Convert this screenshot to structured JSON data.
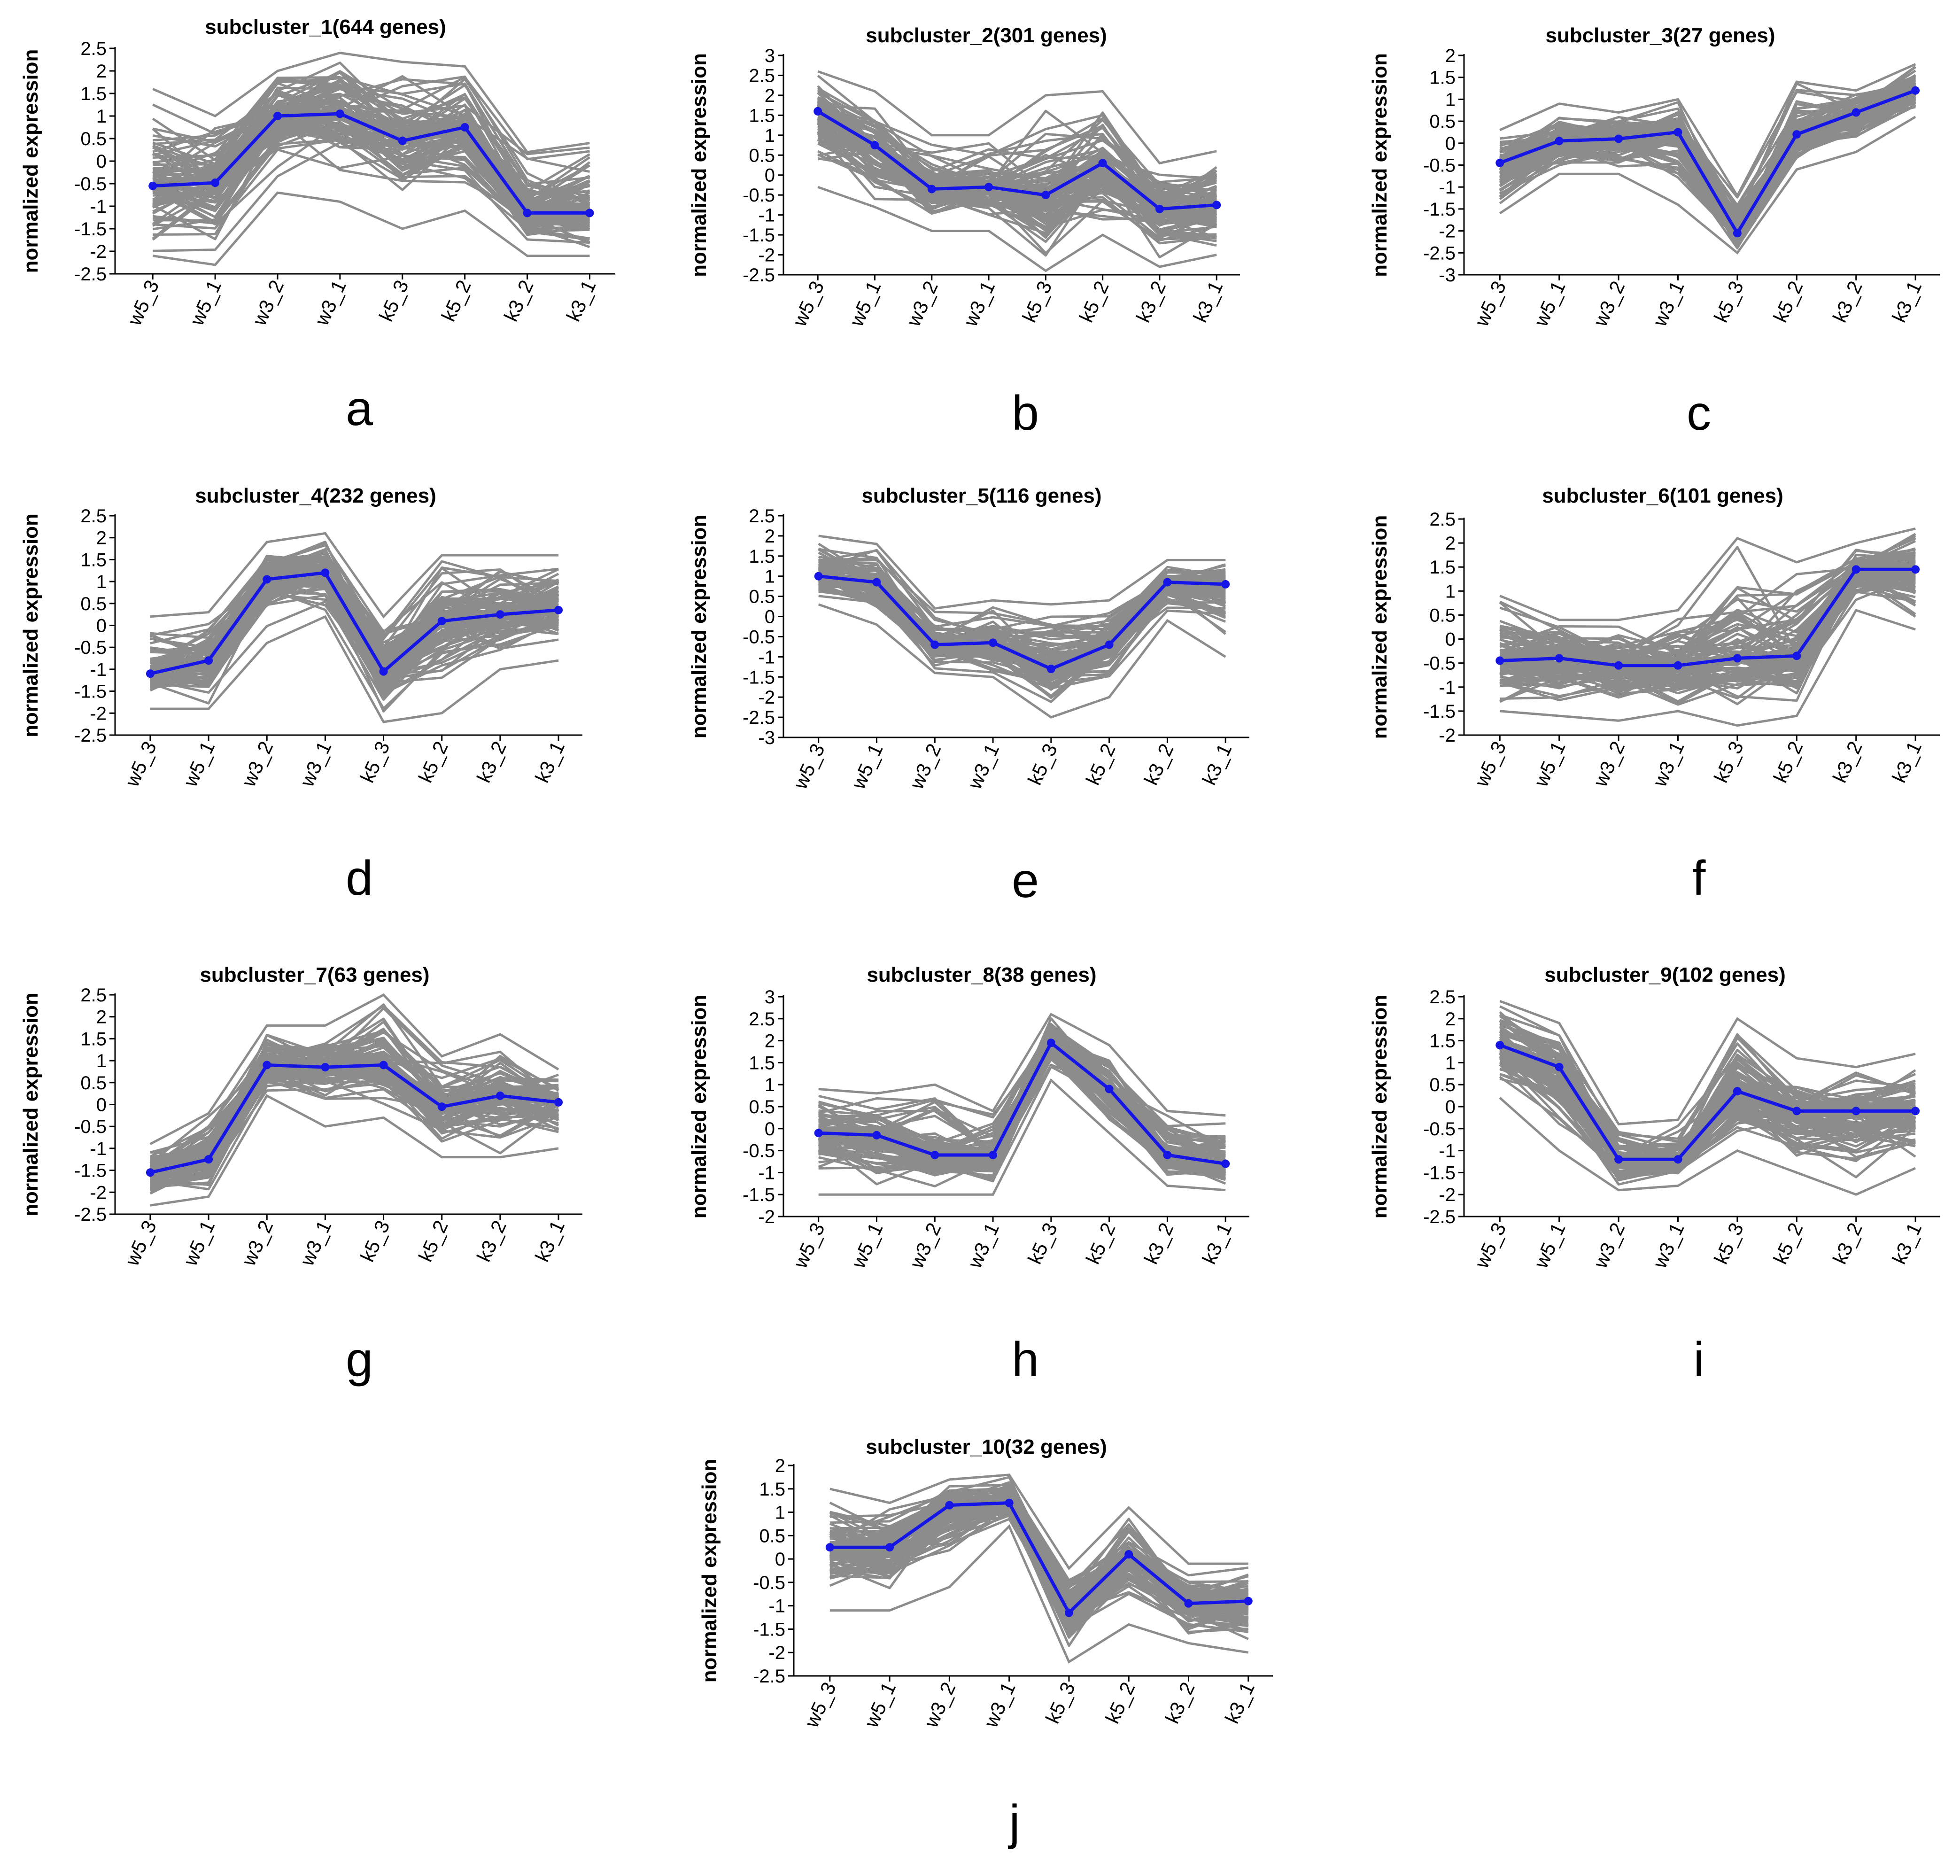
{
  "colors": {
    "gene_lines": "#8c8c8c",
    "mean_line": "#1515e6",
    "axis": "#000000"
  },
  "chart_data": [
    {
      "type": "line",
      "panel": "a",
      "title": "subcluster_1(644 genes)",
      "ylabel": "normalized expression",
      "xlabel": "",
      "categories": [
        "w5_3",
        "w5_1",
        "w3_2",
        "w3_1",
        "k5_3",
        "k5_2",
        "k3_2",
        "k3_1"
      ],
      "yticks": [
        "2.5",
        "2",
        "1.5",
        "1",
        "0.5",
        "0",
        "-0.5",
        "-1",
        "-1.5",
        "-2",
        "-2.5"
      ],
      "ylim": [
        -2.5,
        2.5
      ],
      "gene_band": {
        "low": [
          -2.1,
          -2.3,
          -0.7,
          -0.9,
          -1.5,
          -1.1,
          -2.1,
          -2.1
        ],
        "high": [
          1.6,
          1.0,
          2.0,
          2.4,
          2.2,
          2.1,
          0.2,
          0.4
        ]
      },
      "series": [
        {
          "values": [
            -0.55,
            -0.48,
            1.0,
            1.05,
            0.45,
            0.75,
            -1.15,
            -1.15
          ]
        }
      ]
    },
    {
      "type": "line",
      "panel": "b",
      "title": "subcluster_2(301 genes)",
      "ylabel": "normalized expression",
      "xlabel": "",
      "categories": [
        "w5_3",
        "w5_1",
        "w3_2",
        "w3_1",
        "k5_3",
        "k5_2",
        "k3_2",
        "k3_1"
      ],
      "yticks": [
        "3",
        "2.5",
        "2",
        "1.5",
        "1",
        "0.5",
        "0",
        "-0.5",
        "-1",
        "-1.5",
        "-2",
        "-2.5"
      ],
      "ylim": [
        -2.5,
        3
      ],
      "gene_band": {
        "low": [
          -0.3,
          -0.8,
          -1.4,
          -1.4,
          -2.4,
          -1.5,
          -2.3,
          -2.0
        ],
        "high": [
          2.6,
          2.1,
          1.0,
          1.0,
          2.0,
          2.1,
          0.3,
          0.6
        ]
      },
      "series": [
        {
          "values": [
            1.6,
            0.75,
            -0.35,
            -0.3,
            -0.5,
            0.3,
            -0.85,
            -0.75
          ]
        }
      ]
    },
    {
      "type": "line",
      "panel": "c",
      "title": "subcluster_3(27 genes)",
      "ylabel": "normalized expression",
      "xlabel": "",
      "categories": [
        "w5_3",
        "w5_1",
        "w3_2",
        "w3_1",
        "k5_3",
        "k5_2",
        "k3_2",
        "k3_1"
      ],
      "yticks": [
        "2",
        "1.5",
        "1",
        "0.5",
        "0",
        "-0.5",
        "-1",
        "-1.5",
        "-2",
        "-2.5",
        "-3"
      ],
      "ylim": [
        -3,
        2
      ],
      "gene_band": {
        "low": [
          -1.6,
          -0.7,
          -0.7,
          -1.4,
          -2.5,
          -0.6,
          -0.2,
          0.6
        ],
        "high": [
          0.3,
          0.9,
          0.7,
          1.0,
          -1.2,
          1.4,
          1.2,
          1.8
        ]
      },
      "series": [
        {
          "values": [
            -0.45,
            0.05,
            0.1,
            0.25,
            -2.05,
            0.2,
            0.7,
            1.2
          ]
        }
      ]
    },
    {
      "type": "line",
      "panel": "d",
      "title": "subcluster_4(232 genes)",
      "ylabel": "normalized expression",
      "xlabel": "",
      "categories": [
        "w5_3",
        "w5_1",
        "w3_2",
        "w3_1",
        "k5_3",
        "k5_2",
        "k3_2",
        "k3_1"
      ],
      "yticks": [
        "2.5",
        "2",
        "1.5",
        "1",
        "0.5",
        "0",
        "-0.5",
        "-1",
        "-1.5",
        "-2",
        "-2.5"
      ],
      "ylim": [
        -2.5,
        2.5
      ],
      "gene_band": {
        "low": [
          -1.9,
          -1.9,
          -0.4,
          0.2,
          -2.2,
          -2.0,
          -1.0,
          -0.8
        ],
        "high": [
          0.2,
          0.3,
          1.9,
          2.1,
          0.2,
          1.6,
          1.6,
          1.6
        ]
      },
      "series": [
        {
          "values": [
            -1.1,
            -0.8,
            1.05,
            1.2,
            -1.05,
            0.1,
            0.25,
            0.35
          ]
        }
      ]
    },
    {
      "type": "line",
      "panel": "e",
      "title": "subcluster_5(116 genes)",
      "ylabel": "normalized expression",
      "xlabel": "",
      "categories": [
        "w5_3",
        "w5_1",
        "w3_2",
        "w3_1",
        "k5_3",
        "k5_2",
        "k3_2",
        "k3_1"
      ],
      "yticks": [
        "2.5",
        "2",
        "1.5",
        "1",
        "0.5",
        "0",
        "-0.5",
        "-1",
        "-1.5",
        "-2",
        "-2.5",
        "-3"
      ],
      "ylim": [
        -3,
        2.5
      ],
      "gene_band": {
        "low": [
          0.3,
          -0.2,
          -1.4,
          -1.5,
          -2.5,
          -2.0,
          -0.1,
          -1.0
        ],
        "high": [
          2.0,
          1.8,
          0.2,
          0.4,
          0.3,
          0.4,
          1.4,
          1.4
        ]
      },
      "series": [
        {
          "values": [
            1.0,
            0.85,
            -0.7,
            -0.65,
            -1.3,
            -0.7,
            0.85,
            0.8
          ]
        }
      ]
    },
    {
      "type": "line",
      "panel": "f",
      "title": "subcluster_6(101 genes)",
      "ylabel": "normalized expression",
      "xlabel": "",
      "categories": [
        "w5_3",
        "w5_1",
        "w3_2",
        "w3_1",
        "k5_3",
        "k5_2",
        "k3_2",
        "k3_1"
      ],
      "yticks": [
        "2.5",
        "2",
        "1.5",
        "1",
        "0.5",
        "0",
        "-0.5",
        "-1",
        "-1.5",
        "-2"
      ],
      "ylim": [
        -2,
        2.5
      ],
      "gene_band": {
        "low": [
          -1.5,
          -1.6,
          -1.7,
          -1.5,
          -1.8,
          -1.6,
          0.6,
          0.2
        ],
        "high": [
          0.9,
          0.4,
          0.4,
          0.6,
          2.1,
          1.6,
          2.0,
          2.3
        ]
      },
      "series": [
        {
          "values": [
            -0.45,
            -0.4,
            -0.55,
            -0.55,
            -0.4,
            -0.35,
            1.45,
            1.45
          ]
        }
      ]
    },
    {
      "type": "line",
      "panel": "g",
      "title": "subcluster_7(63 genes)",
      "ylabel": "normalized expression",
      "xlabel": "",
      "categories": [
        "w5_3",
        "w5_1",
        "w3_2",
        "w3_1",
        "k5_3",
        "k5_2",
        "k3_2",
        "k3_1"
      ],
      "yticks": [
        "2.5",
        "2",
        "1.5",
        "1",
        "0.5",
        "0",
        "-0.5",
        "-1",
        "-1.5",
        "-2",
        "-2.5"
      ],
      "ylim": [
        -2.5,
        2.5
      ],
      "gene_band": {
        "low": [
          -2.3,
          -2.1,
          0.2,
          -0.5,
          -0.3,
          -1.2,
          -1.2,
          -1.0
        ],
        "high": [
          -0.9,
          -0.2,
          1.8,
          1.8,
          2.5,
          1.1,
          1.6,
          0.8
        ]
      },
      "series": [
        {
          "values": [
            -1.55,
            -1.25,
            0.9,
            0.85,
            0.9,
            -0.05,
            0.2,
            0.05
          ]
        }
      ]
    },
    {
      "type": "line",
      "panel": "h",
      "title": "subcluster_8(38 genes)",
      "ylabel": "normalized expression",
      "xlabel": "",
      "categories": [
        "w5_3",
        "w5_1",
        "w3_2",
        "w3_1",
        "k5_3",
        "k5_2",
        "k3_2",
        "k3_1"
      ],
      "yticks": [
        "3",
        "2.5",
        "2",
        "1.5",
        "1",
        "0.5",
        "0",
        "-0.5",
        "-1",
        "-1.5",
        "-2"
      ],
      "ylim": [
        -2,
        3
      ],
      "gene_band": {
        "low": [
          -1.5,
          -1.5,
          -1.5,
          -1.5,
          1.1,
          -0.1,
          -1.3,
          -1.4
        ],
        "high": [
          0.9,
          0.8,
          1.0,
          0.4,
          2.6,
          1.9,
          0.4,
          0.3
        ]
      },
      "series": [
        {
          "values": [
            -0.1,
            -0.15,
            -0.6,
            -0.6,
            1.95,
            0.9,
            -0.6,
            -0.8
          ]
        }
      ]
    },
    {
      "type": "line",
      "panel": "i",
      "title": "subcluster_9(102 genes)",
      "ylabel": "normalized expression",
      "xlabel": "",
      "categories": [
        "w5_3",
        "w5_1",
        "w3_2",
        "w3_1",
        "k5_3",
        "k5_2",
        "k3_2",
        "k3_1"
      ],
      "yticks": [
        "2.5",
        "2",
        "1.5",
        "1",
        "0.5",
        "0",
        "-0.5",
        "-1",
        "-1.5",
        "-2",
        "-2.5"
      ],
      "ylim": [
        -2.5,
        2.5
      ],
      "gene_band": {
        "low": [
          0.2,
          -1.0,
          -1.9,
          -1.8,
          -1.0,
          -1.5,
          -2.0,
          -1.4
        ],
        "high": [
          2.4,
          1.9,
          -0.4,
          -0.3,
          2.0,
          1.1,
          0.9,
          1.2
        ]
      },
      "series": [
        {
          "values": [
            1.4,
            0.9,
            -1.2,
            -1.2,
            0.35,
            -0.1,
            -0.1,
            -0.1
          ]
        }
      ]
    },
    {
      "type": "line",
      "panel": "j",
      "title": "subcluster_10(32 genes)",
      "ylabel": "normalized expression",
      "xlabel": "",
      "categories": [
        "w5_3",
        "w5_1",
        "w3_2",
        "w3_1",
        "k5_3",
        "k5_2",
        "k3_2",
        "k3_1"
      ],
      "yticks": [
        "2",
        "1.5",
        "1",
        "0.5",
        "0",
        "-0.5",
        "-1",
        "-1.5",
        "-2",
        "-2.5"
      ],
      "ylim": [
        -2.5,
        2
      ],
      "gene_band": {
        "low": [
          -1.1,
          -1.1,
          -0.6,
          0.7,
          -2.2,
          -1.4,
          -1.8,
          -2.0
        ],
        "high": [
          1.5,
          1.2,
          1.7,
          1.8,
          -0.2,
          1.1,
          -0.1,
          -0.1
        ]
      },
      "series": [
        {
          "values": [
            0.25,
            0.25,
            1.15,
            1.2,
            -1.15,
            0.1,
            -0.95,
            -0.9
          ]
        }
      ]
    }
  ]
}
